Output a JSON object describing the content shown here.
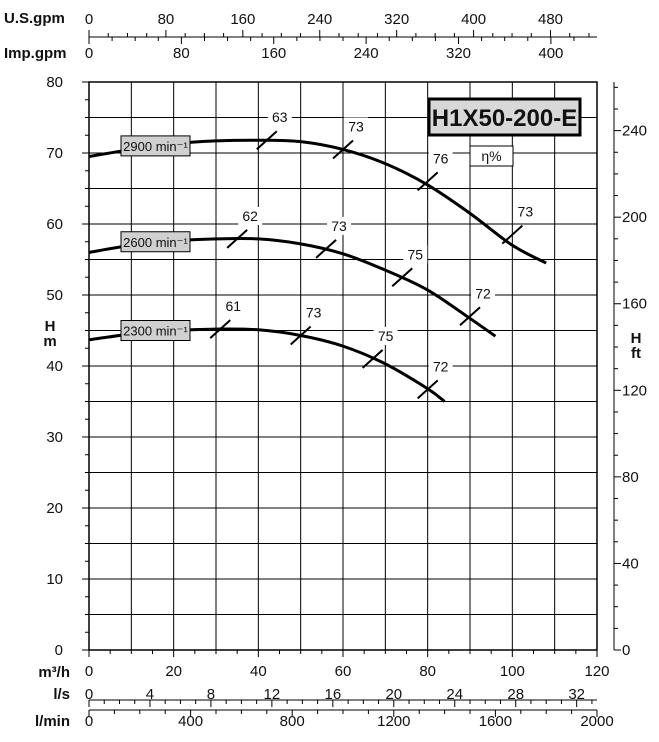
{
  "chart_data": {
    "type": "line",
    "title": "H1X50-200-E",
    "efficiency_label": "η%",
    "x_unit": "m³/h",
    "y_unit": "H m",
    "x_range": [
      0,
      120
    ],
    "y_range": [
      0,
      80
    ],
    "grid": true,
    "axes": {
      "usgpm": {
        "label": "U.S.gpm",
        "ticks": [
          "0",
          "80",
          "160",
          "240",
          "320",
          "400",
          "480"
        ]
      },
      "impgpm": {
        "label": "Imp.gpm",
        "ticks": [
          "0",
          "80",
          "160",
          "240",
          "320",
          "400"
        ]
      },
      "m3h": {
        "label": "m³/h",
        "ticks": [
          "0",
          "20",
          "40",
          "60",
          "80",
          "100",
          "120"
        ]
      },
      "ls": {
        "label": "l/s",
        "ticks": [
          "0",
          "4",
          "8",
          "12",
          "16",
          "20",
          "24",
          "28",
          "32"
        ]
      },
      "lmin": {
        "label": "l/min",
        "ticks": [
          "0",
          "400",
          "800",
          "1200",
          "1600",
          "2000"
        ]
      },
      "hm": {
        "label_h": "H",
        "label_unit": "m",
        "ticks": [
          "0",
          "10",
          "20",
          "30",
          "40",
          "50",
          "60",
          "70",
          "80"
        ]
      },
      "hft": {
        "label_h": "H",
        "label_unit": "ft",
        "ticks": [
          "0",
          "40",
          "80",
          "120",
          "160",
          "200",
          "240"
        ]
      }
    },
    "series": [
      {
        "name": "2900 min⁻¹",
        "x": [
          0,
          10,
          20,
          30,
          40,
          50,
          60,
          70,
          80,
          90,
          100,
          108
        ],
        "y": [
          69.5,
          70.5,
          71.3,
          71.7,
          71.8,
          71.6,
          70.5,
          68.5,
          65.5,
          61.5,
          57.0,
          54.5
        ],
        "efficiency": [
          {
            "label": "63",
            "x": 42,
            "y": 71.8
          },
          {
            "label": "73",
            "x": 60,
            "y": 70.5
          },
          {
            "label": "76",
            "x": 80,
            "y": 66.0
          },
          {
            "label": "73",
            "x": 100,
            "y": 58.5
          }
        ]
      },
      {
        "name": "2600 min⁻¹",
        "x": [
          0,
          10,
          20,
          30,
          40,
          50,
          60,
          70,
          80,
          90,
          96
        ],
        "y": [
          56.0,
          57.0,
          57.6,
          57.9,
          57.9,
          57.2,
          55.8,
          53.5,
          50.7,
          46.7,
          44.2
        ],
        "efficiency": [
          {
            "label": "62",
            "x": 35,
            "y": 57.9
          },
          {
            "label": "73",
            "x": 56,
            "y": 56.5
          },
          {
            "label": "75",
            "x": 74,
            "y": 52.5
          },
          {
            "label": "72",
            "x": 90,
            "y": 47.0
          }
        ]
      },
      {
        "name": "2300 min⁻¹",
        "x": [
          0,
          10,
          20,
          30,
          40,
          50,
          60,
          70,
          80,
          84
        ],
        "y": [
          43.7,
          44.5,
          45.0,
          45.2,
          45.1,
          44.3,
          42.8,
          40.3,
          36.8,
          35.0
        ],
        "efficiency": [
          {
            "label": "61",
            "x": 31,
            "y": 45.2
          },
          {
            "label": "73",
            "x": 50,
            "y": 44.3
          },
          {
            "label": "75",
            "x": 67,
            "y": 41.0
          },
          {
            "label": "72",
            "x": 80,
            "y": 36.7
          }
        ]
      }
    ]
  }
}
